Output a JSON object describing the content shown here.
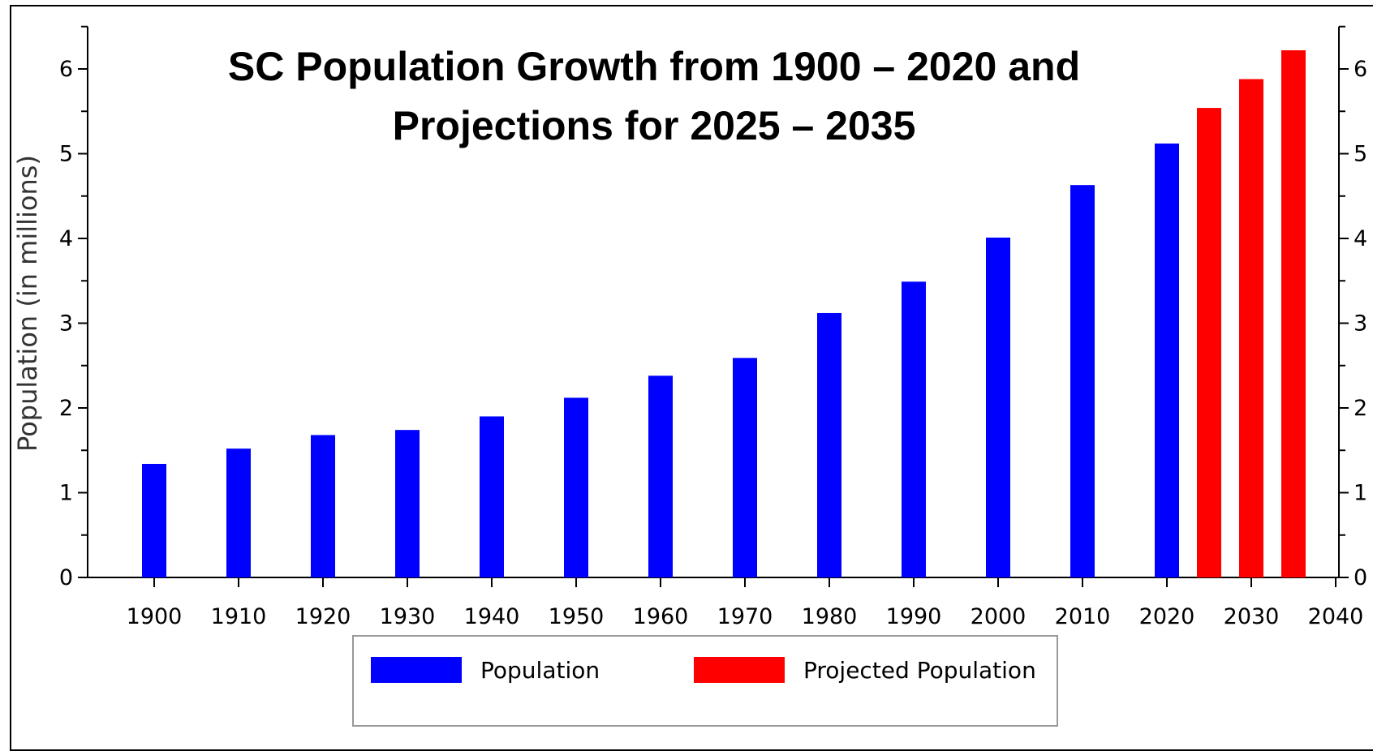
{
  "chart_data": {
    "type": "bar",
    "title_lines": [
      "SC Population Growth from 1900 – 2020 and",
      "Projections for 2025 – 2035"
    ],
    "ylabel": "Population (in millions)",
    "xlabel": "",
    "ylim": [
      0,
      6.5
    ],
    "xlim": [
      1895,
      2040
    ],
    "y_ticks": [
      "0",
      "1",
      "2",
      "3",
      "4",
      "5",
      "6"
    ],
    "y_ticks_right": [
      "0",
      "1",
      "2",
      "3",
      "4",
      "5",
      "6"
    ],
    "x_ticks": [
      "1900",
      "1910",
      "1920",
      "1930",
      "1940",
      "1950",
      "1960",
      "1970",
      "1980",
      "1990",
      "2000",
      "2010",
      "2020",
      "2030",
      "2040"
    ],
    "grid": false,
    "legend_position": "bottom",
    "series": [
      {
        "name": "Population",
        "color": "#0000ff",
        "x": [
          1900,
          1910,
          1920,
          1930,
          1940,
          1950,
          1960,
          1970,
          1980,
          1990,
          2000,
          2010,
          2020
        ],
        "values": [
          1.34,
          1.52,
          1.68,
          1.74,
          1.9,
          2.12,
          2.38,
          2.59,
          3.12,
          3.49,
          4.01,
          4.63,
          5.12
        ]
      },
      {
        "name": "Projected Population",
        "color": "#ff0000",
        "x": [
          2025,
          2030,
          2035
        ],
        "values": [
          5.54,
          5.88,
          6.22
        ]
      }
    ]
  }
}
